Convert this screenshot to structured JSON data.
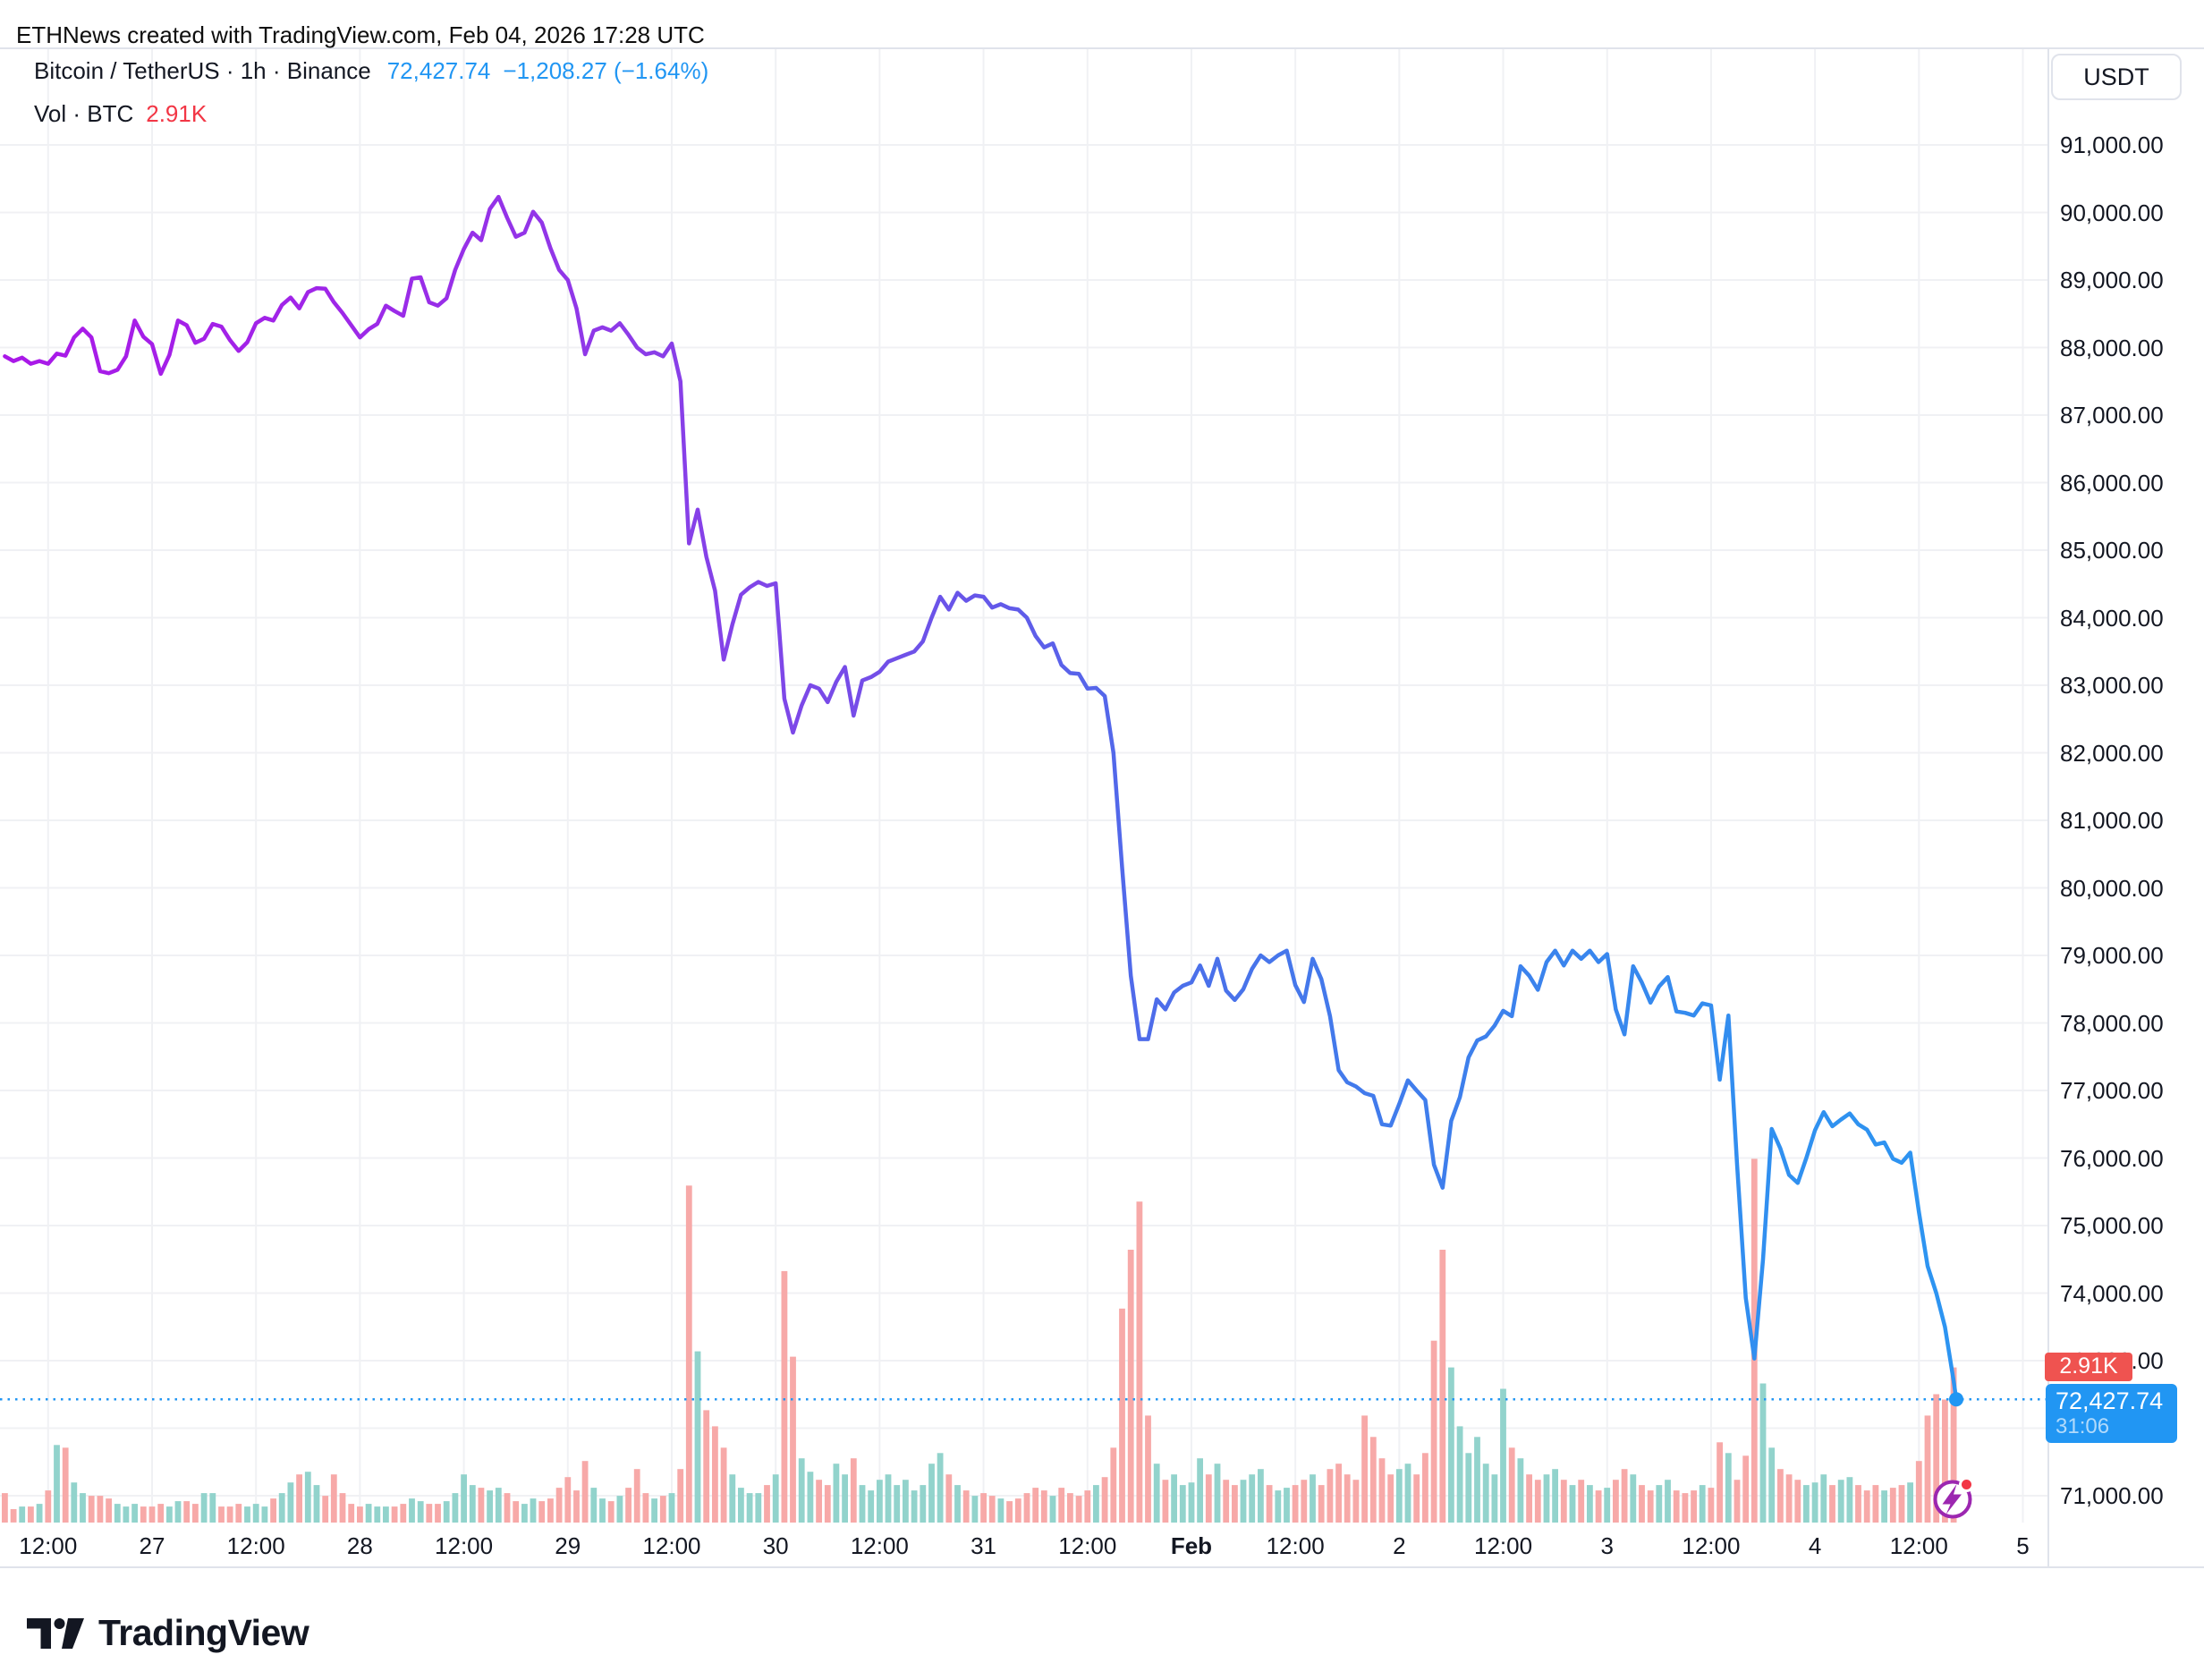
{
  "attribution": "ETHNews created with TradingView.com, Feb 04, 2026 17:28 UTC",
  "legend": {
    "symbol_line": "Bitcoin / TetherUS · 1h · Binance",
    "price": "72,427.74",
    "change": "−1,208.27 (−1.64%)",
    "vol_label": "Vol · BTC",
    "vol_value": "2.91K"
  },
  "price_scale": {
    "currency_button": "USDT",
    "labels": [
      {
        "v": 91000,
        "text": "91,000.00"
      },
      {
        "v": 90000,
        "text": "90,000.00"
      },
      {
        "v": 89000,
        "text": "89,000.00"
      },
      {
        "v": 88000,
        "text": "88,000.00"
      },
      {
        "v": 87000,
        "text": "87,000.00"
      },
      {
        "v": 86000,
        "text": "86,000.00"
      },
      {
        "v": 85000,
        "text": "85,000.00"
      },
      {
        "v": 84000,
        "text": "84,000.00"
      },
      {
        "v": 83000,
        "text": "83,000.00"
      },
      {
        "v": 82000,
        "text": "82,000.00"
      },
      {
        "v": 81000,
        "text": "81,000.00"
      },
      {
        "v": 80000,
        "text": "80,000.00"
      },
      {
        "v": 79000,
        "text": "79,000.00"
      },
      {
        "v": 78000,
        "text": "78,000.00"
      },
      {
        "v": 77000,
        "text": "77,000.00"
      },
      {
        "v": 76000,
        "text": "76,000.00"
      },
      {
        "v": 75000,
        "text": "75,000.00"
      },
      {
        "v": 74000,
        "text": "74,000.00"
      },
      {
        "v": 73000,
        "text": "73,000.00"
      },
      {
        "v": 72000,
        "text": "72,000.00"
      },
      {
        "v": 71000,
        "text": "71,000.00"
      }
    ],
    "badge_volume": "2.91K",
    "badge_price": "72,427.74",
    "badge_countdown": "31:06"
  },
  "footer": {
    "logo_text": "TradingView"
  },
  "colors": {
    "text": "#131722",
    "accent_blue": "#2196F3",
    "value_red": "#F23645",
    "badge_red_bg": "#EF5350",
    "bar_down": "#F7A9A8",
    "bar_up": "#92D3CC",
    "grid": "#F0F1F4",
    "border": "#E0E3EB",
    "marker_purple": "#9C27B0",
    "marker_dot_red": "#F23645",
    "line_gradient": [
      "#AA18E8",
      "#A025E8",
      "#8E3AE8",
      "#7A4AE8",
      "#6557E9",
      "#4E6CEA",
      "#4478EB",
      "#3B83ED",
      "#3090F0",
      "#2B97F2"
    ]
  },
  "chart_data": {
    "type": "line",
    "title": "Bitcoin / TetherUS · 1h · Binance",
    "symbol": "Bitcoin / TetherUS",
    "interval": "1h",
    "exchange": "Binance",
    "current_price": 72427.74,
    "change": -1208.27,
    "change_pct": -1.64,
    "current_volume_btc_k": 2.91,
    "ylim": [
      71000,
      91000
    ],
    "y_tick_step": 1000,
    "grid": true,
    "legend_position": "top-left",
    "x_axis_note": "t = hours since Jan 26 00:00 UTC; hourly bars from t=7 (Jan 26 07:00) to t=232 (Feb 4 16:00), plus live point at t=232.3 (Feb 4 17:28)",
    "time_labels": [
      {
        "t": 12,
        "text": "12:00"
      },
      {
        "t": 24,
        "text": "27"
      },
      {
        "t": 36,
        "text": "12:00"
      },
      {
        "t": 48,
        "text": "28"
      },
      {
        "t": 60,
        "text": "12:00"
      },
      {
        "t": 72,
        "text": "29"
      },
      {
        "t": 84,
        "text": "12:00"
      },
      {
        "t": 96,
        "text": "30"
      },
      {
        "t": 108,
        "text": "12:00"
      },
      {
        "t": 120,
        "text": "31"
      },
      {
        "t": 132,
        "text": "12:00"
      },
      {
        "t": 144,
        "text": "Feb",
        "bold": true
      },
      {
        "t": 156,
        "text": "12:00"
      },
      {
        "t": 168,
        "text": "2"
      },
      {
        "t": 180,
        "text": "12:00"
      },
      {
        "t": 192,
        "text": "3"
      },
      {
        "t": 204,
        "text": "12:00"
      },
      {
        "t": 216,
        "text": "4"
      },
      {
        "t": 228,
        "text": "12:00"
      },
      {
        "t": 240,
        "text": "5"
      }
    ],
    "series_start_t": 7,
    "prices": [
      87870,
      87800,
      87850,
      87760,
      87800,
      87760,
      87910,
      87880,
      88150,
      88280,
      88150,
      87650,
      87620,
      87670,
      87870,
      88400,
      88160,
      88050,
      87610,
      87890,
      88400,
      88330,
      88070,
      88130,
      88350,
      88310,
      88110,
      87950,
      88080,
      88360,
      88440,
      88400,
      88630,
      88740,
      88580,
      88820,
      88880,
      88870,
      88670,
      88510,
      88330,
      88150,
      88270,
      88350,
      88620,
      88540,
      88470,
      89020,
      89040,
      88670,
      88620,
      88730,
      89150,
      89460,
      89700,
      89590,
      90050,
      90230,
      89920,
      89640,
      89700,
      90010,
      89850,
      89470,
      89150,
      89000,
      88580,
      87900,
      88250,
      88300,
      88250,
      88360,
      88190,
      88000,
      87900,
      87930,
      87870,
      88060,
      87500,
      85100,
      85600,
      84900,
      84400,
      83380,
      83900,
      84340,
      84450,
      84530,
      84470,
      84510,
      82800,
      82300,
      82700,
      83000,
      82950,
      82750,
      83050,
      83270,
      82550,
      83070,
      83120,
      83200,
      83350,
      83400,
      83450,
      83500,
      83650,
      84000,
      84310,
      84120,
      84370,
      84250,
      84330,
      84310,
      84150,
      84200,
      84140,
      84120,
      84000,
      83730,
      83560,
      83620,
      83300,
      83180,
      83170,
      82950,
      82960,
      82840,
      82000,
      80300,
      78700,
      77760,
      77760,
      78350,
      78200,
      78450,
      78550,
      78600,
      78850,
      78550,
      78950,
      78480,
      78340,
      78500,
      78800,
      79000,
      78900,
      79000,
      79070,
      78560,
      78310,
      78950,
      78650,
      78100,
      77300,
      77120,
      77060,
      76960,
      76920,
      76500,
      76480,
      76800,
      77150,
      77000,
      76860,
      75900,
      75560,
      76550,
      76900,
      77490,
      77740,
      77800,
      77960,
      78180,
      78100,
      78840,
      78700,
      78490,
      78900,
      79070,
      78850,
      79070,
      78950,
      79070,
      78900,
      79020,
      78200,
      77830,
      78840,
      78600,
      78300,
      78540,
      78680,
      78170,
      78150,
      78110,
      78290,
      78260,
      77160,
      78110,
      75900,
      73930,
      73030,
      74500,
      76430,
      76140,
      75750,
      75630,
      76000,
      76410,
      76680,
      76470,
      76570,
      76660,
      76500,
      76420,
      76200,
      76230,
      75990,
      75930,
      76080,
      75200,
      74400,
      74000,
      73500,
      72700
    ],
    "last_point": {
      "t": 232.3,
      "price": 72427.74
    },
    "volume_note": "thousand BTC per hour; negative = down (red) bar, positive = up (teal) bar",
    "volumes_k": [
      -0.55,
      -0.25,
      0.3,
      -0.3,
      0.35,
      -0.6,
      1.45,
      -1.4,
      0.75,
      0.55,
      -0.5,
      -0.5,
      -0.45,
      0.35,
      0.3,
      0.35,
      -0.3,
      -0.3,
      -0.35,
      0.3,
      0.4,
      -0.4,
      -0.35,
      0.55,
      0.55,
      -0.3,
      -0.3,
      -0.35,
      0.3,
      0.35,
      0.3,
      -0.45,
      0.55,
      0.75,
      -0.9,
      0.95,
      0.7,
      -0.5,
      -0.9,
      -0.55,
      -0.35,
      -0.3,
      0.35,
      0.3,
      0.3,
      -0.3,
      -0.35,
      0.45,
      0.4,
      -0.35,
      -0.35,
      0.4,
      0.55,
      0.9,
      0.7,
      -0.65,
      0.6,
      0.65,
      -0.55,
      -0.4,
      0.35,
      0.45,
      -0.4,
      -0.45,
      -0.65,
      -0.85,
      -0.6,
      -1.15,
      0.65,
      0.45,
      -0.4,
      0.5,
      -0.65,
      -1.0,
      -0.55,
      0.45,
      -0.5,
      0.55,
      -1.0,
      -6.3,
      3.2,
      -2.1,
      -1.8,
      -1.4,
      0.9,
      0.65,
      0.55,
      0.55,
      -0.7,
      0.9,
      -4.7,
      -3.1,
      1.2,
      0.95,
      -0.8,
      -0.7,
      1.1,
      0.9,
      -1.2,
      0.7,
      0.6,
      0.8,
      0.9,
      0.7,
      0.8,
      0.6,
      0.7,
      1.1,
      1.3,
      -0.9,
      0.7,
      -0.6,
      0.5,
      -0.55,
      -0.5,
      0.45,
      -0.4,
      -0.45,
      -0.55,
      -0.65,
      -0.6,
      0.5,
      -0.65,
      -0.55,
      -0.5,
      -0.6,
      0.7,
      -0.85,
      -1.4,
      -4.0,
      -5.1,
      -6.0,
      -2.0,
      1.1,
      -0.8,
      0.9,
      0.7,
      0.75,
      1.2,
      -0.9,
      1.1,
      -0.8,
      -0.7,
      0.8,
      0.9,
      1.0,
      -0.7,
      0.6,
      0.65,
      -0.7,
      -0.8,
      0.9,
      -0.7,
      -1.0,
      -1.1,
      -0.9,
      -0.8,
      -2.0,
      -1.6,
      -1.2,
      -0.9,
      1.0,
      1.1,
      -0.9,
      -1.3,
      -3.4,
      -5.1,
      2.9,
      1.8,
      1.3,
      1.6,
      1.1,
      0.9,
      2.5,
      -1.4,
      1.2,
      -0.9,
      -0.8,
      0.9,
      1.0,
      -0.8,
      0.7,
      -0.8,
      0.7,
      -0.6,
      0.65,
      -0.8,
      -1.0,
      0.9,
      -0.7,
      -0.6,
      0.7,
      0.8,
      -0.6,
      -0.55,
      -0.6,
      0.7,
      -0.65,
      -1.5,
      1.3,
      -0.8,
      -1.25,
      -6.8,
      2.6,
      1.4,
      -1.0,
      -0.9,
      -0.8,
      0.7,
      0.75,
      0.9,
      -0.7,
      0.8,
      0.85,
      -0.7,
      -0.6,
      -0.7,
      0.6,
      -0.65,
      -0.7,
      0.75,
      -1.15,
      -2.0,
      -2.4,
      -2.3,
      -2.9
    ]
  }
}
